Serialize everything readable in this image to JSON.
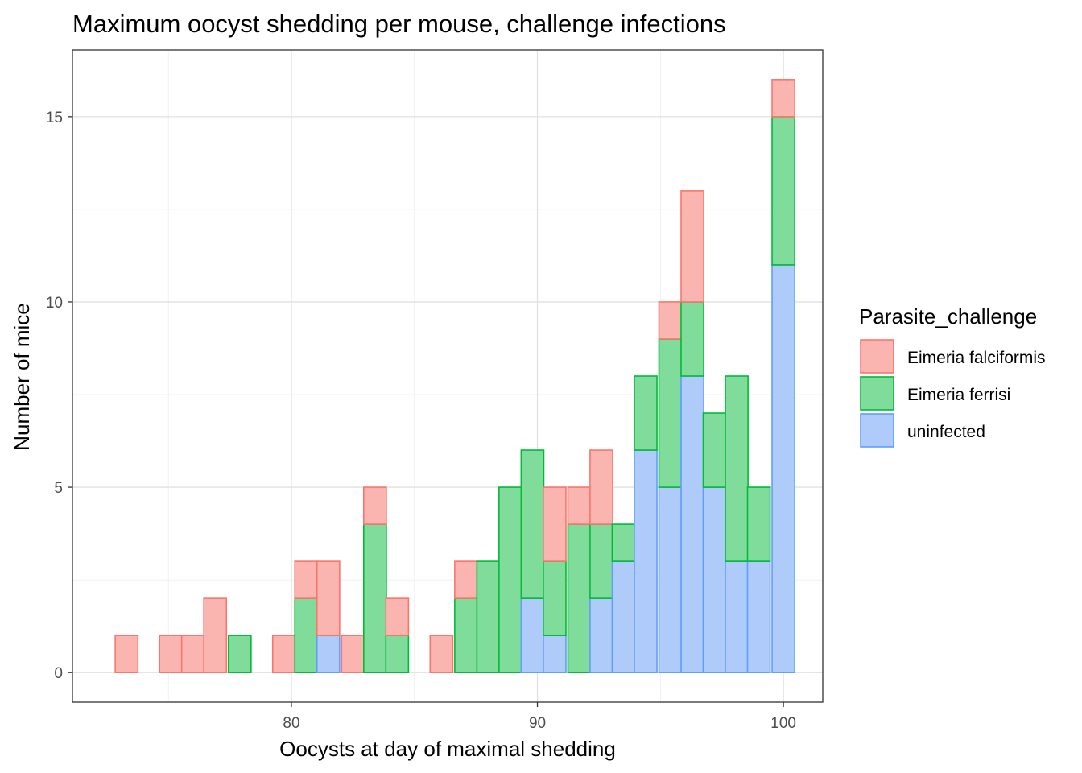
{
  "chart_data": {
    "type": "bar",
    "stacked": true,
    "title": "Maximum oocyst shedding per mouse, challenge infections",
    "xlabel": "Oocysts at day of maximal shedding",
    "ylabel": "Number of mice",
    "xlim": [
      71.1,
      101.6
    ],
    "ylim": [
      -0.8,
      16.8
    ],
    "xticks": [
      "80",
      "90",
      "100"
    ],
    "yticks": [
      "0",
      "5",
      "10",
      "15"
    ],
    "grid": true,
    "legend": {
      "title": "Parasite_challenge",
      "position": "right"
    },
    "bin_width": 0.92,
    "x": [
      73.3,
      74.2,
      75.1,
      76.0,
      76.9,
      77.9,
      78.8,
      79.7,
      80.6,
      81.5,
      82.5,
      83.4,
      84.3,
      85.2,
      86.1,
      87.1,
      88.0,
      88.9,
      89.8,
      90.7,
      91.7,
      92.6,
      93.5,
      94.4,
      95.4,
      96.3,
      97.2,
      98.1,
      99.0,
      100.0
    ],
    "series": [
      {
        "name": "uninfected",
        "color": "#619CFF",
        "fill": "#aecbfa",
        "values": [
          0,
          0,
          0,
          0,
          0,
          0,
          0,
          0,
          0,
          1,
          0,
          0,
          0,
          0,
          0,
          0,
          0,
          0,
          2,
          1,
          0,
          2,
          3,
          6,
          5,
          8,
          5,
          3,
          3,
          11
        ]
      },
      {
        "name": "Eimeria ferrisi",
        "color": "#00BA38",
        "fill": "#80dc9b",
        "values": [
          0,
          0,
          0,
          0,
          0,
          1,
          0,
          0,
          2,
          0,
          0,
          4,
          1,
          0,
          0,
          2,
          3,
          5,
          4,
          2,
          4,
          2,
          1,
          2,
          4,
          2,
          2,
          5,
          2,
          4
        ]
      },
      {
        "name": "Eimeria falciformis",
        "color": "#F8766D",
        "fill": "#fbb5b0",
        "values": [
          1,
          0,
          1,
          1,
          2,
          0,
          0,
          1,
          1,
          2,
          1,
          1,
          1,
          0,
          1,
          1,
          0,
          0,
          0,
          2,
          1,
          2,
          0,
          0,
          1,
          3,
          0,
          0,
          0,
          1
        ]
      }
    ],
    "legend_order": [
      "Eimeria falciformis",
      "Eimeria ferrisi",
      "uninfected"
    ]
  }
}
